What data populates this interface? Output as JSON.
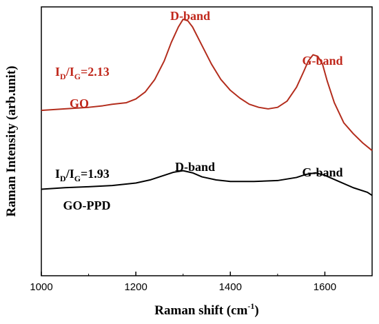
{
  "chart_data": {
    "type": "line",
    "title": "",
    "xlabel": "Raman shift (cm",
    "xlabel_sup": "-1",
    "xlabel_close": ")",
    "ylabel": "Raman Intensity (arb.unit)",
    "xlim": [
      1000,
      1700
    ],
    "x_ticks": [
      1000,
      1200,
      1400,
      1600
    ],
    "yticks_shown": false,
    "grid": false,
    "legend": "none",
    "series": [
      {
        "name": "GO",
        "color": "#b32c1c",
        "x": [
          1000,
          1050,
          1100,
          1130,
          1150,
          1180,
          1200,
          1220,
          1240,
          1260,
          1275,
          1290,
          1300,
          1310,
          1320,
          1340,
          1360,
          1380,
          1400,
          1420,
          1440,
          1460,
          1480,
          1500,
          1520,
          1540,
          1555,
          1565,
          1575,
          1585,
          1595,
          1605,
          1620,
          1640,
          1660,
          1680,
          1700
        ],
        "y": [
          5.35,
          5.4,
          5.45,
          5.5,
          5.55,
          5.6,
          5.72,
          5.95,
          6.35,
          6.95,
          7.55,
          8.05,
          8.3,
          8.25,
          8.05,
          7.45,
          6.85,
          6.35,
          6.0,
          5.75,
          5.55,
          5.45,
          5.4,
          5.45,
          5.65,
          6.1,
          6.6,
          6.95,
          7.15,
          7.1,
          6.85,
          6.3,
          5.6,
          4.95,
          4.6,
          4.3,
          4.05
        ]
      },
      {
        "name": "GO-PPD",
        "color": "#000000",
        "x": [
          1000,
          1050,
          1100,
          1150,
          1200,
          1230,
          1260,
          1280,
          1300,
          1320,
          1340,
          1370,
          1400,
          1450,
          1500,
          1540,
          1560,
          1580,
          1600,
          1630,
          1660,
          1690,
          1700
        ],
        "y": [
          2.8,
          2.85,
          2.88,
          2.92,
          3.0,
          3.1,
          3.25,
          3.35,
          3.4,
          3.33,
          3.2,
          3.1,
          3.05,
          3.05,
          3.08,
          3.18,
          3.28,
          3.33,
          3.25,
          3.05,
          2.85,
          2.7,
          2.6
        ]
      }
    ],
    "annotations": {
      "go_dband": "D-band",
      "go_gband": "G-band",
      "go_label": "GO",
      "go_ratio_main": "I",
      "go_ratio_sub1": "D",
      "go_ratio_mid": "/I",
      "go_ratio_sub2": "G",
      "go_ratio_val": "=2.13",
      "ppd_dband": "D-band",
      "ppd_gband": "G-band",
      "ppd_label": "GO-PPD",
      "ppd_ratio_main": "I",
      "ppd_ratio_sub1": "D",
      "ppd_ratio_mid": "/I",
      "ppd_ratio_sub2": "G",
      "ppd_ratio_val": "=1.93"
    },
    "colors": {
      "go_text": "#c0281c",
      "ppd_text": "#000000"
    }
  }
}
